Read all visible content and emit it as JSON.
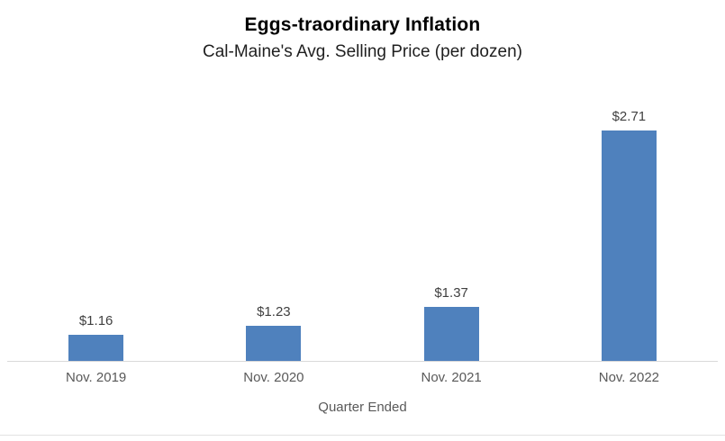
{
  "chart_data": {
    "type": "bar",
    "title": "Eggs-traordinary Inflation",
    "subtitle": "Cal-Maine's Avg. Selling Price (per dozen)",
    "xlabel": "Quarter Ended",
    "ylabel": "",
    "categories": [
      "Nov. 2019",
      "Nov. 2020",
      "Nov. 2021",
      "Nov. 2022"
    ],
    "values": [
      1.16,
      1.23,
      1.37,
      2.71
    ],
    "value_labels": [
      "$1.16",
      "$1.23",
      "$1.37",
      "$2.71"
    ],
    "series": [
      {
        "name": "Avg. Selling Price per dozen (USD)",
        "values": [
          1.16,
          1.23,
          1.37,
          2.71
        ]
      }
    ],
    "ylim": [
      0.96,
      2.95
    ],
    "grid": false,
    "legend": "none",
    "bar_color": "#4f81bd",
    "axis_line_color": "#d9d9d9",
    "value_label_color": "#404040",
    "category_label_color": "#595959"
  }
}
